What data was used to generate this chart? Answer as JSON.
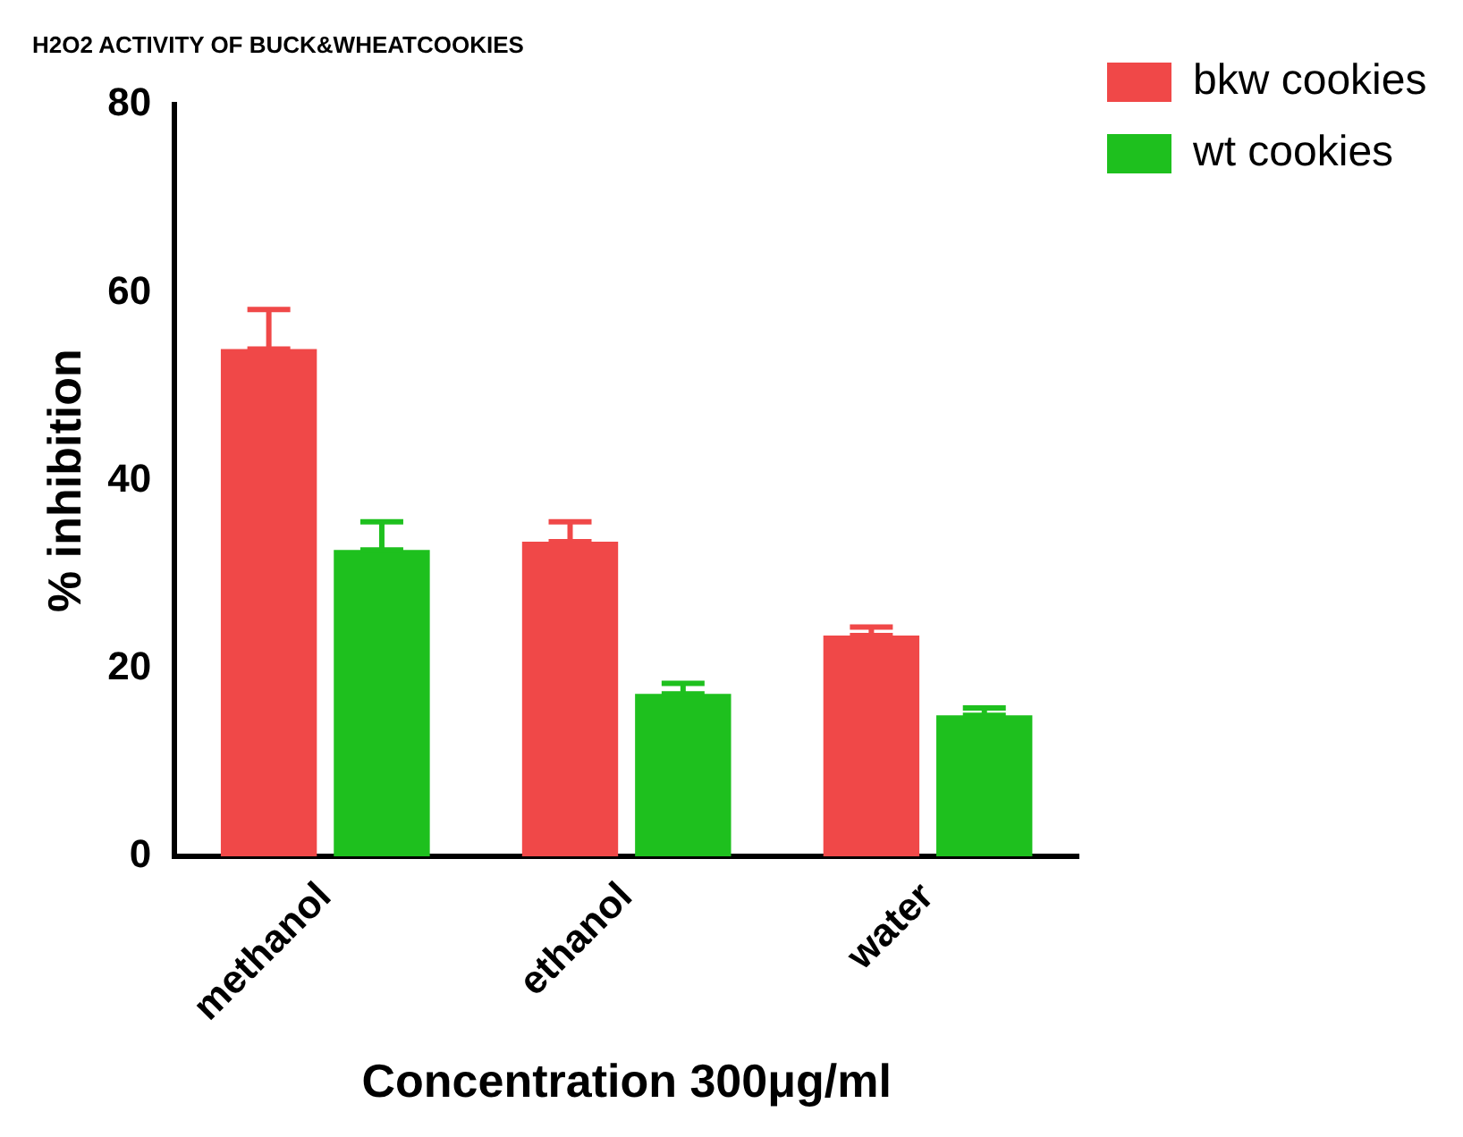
{
  "chart_data": {
    "type": "bar",
    "title": "H2O2 ACTIVITY OF BUCK&WHEATCOOKIES",
    "xlabel": "Concentration 300μg/ml",
    "ylabel": "% inhibition",
    "categories": [
      "methanol",
      "ethanol",
      "water"
    ],
    "series": [
      {
        "name": "bkw cookies",
        "color": "#f04848",
        "values": [
          54,
          33.5,
          23.5
        ],
        "errors": [
          [
            54,
            58.2
          ],
          [
            33.5,
            35.6
          ],
          [
            23.5,
            24.4
          ]
        ]
      },
      {
        "name": "wt cookies",
        "color": "#1ec01e",
        "values": [
          32.6,
          17.3,
          15
        ],
        "errors": [
          [
            32.6,
            35.6
          ],
          [
            17.3,
            18.4
          ],
          [
            15,
            15.8
          ]
        ]
      }
    ],
    "ylim": [
      0,
      80
    ],
    "yticks": [
      0,
      20,
      40,
      60,
      80
    ],
    "grid": false,
    "legend": "top right"
  }
}
